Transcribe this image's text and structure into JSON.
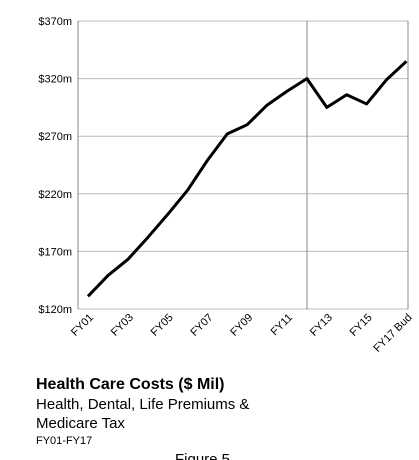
{
  "chart_data": {
    "type": "line",
    "title": "Health Care Costs  ($ Mil)",
    "subtitle_lines": [
      "Health, Dental, Life Premiums &",
      "Medicare Tax"
    ],
    "period": "FY01-FY17",
    "figure_label": "Figure 5",
    "categories": [
      "FY01",
      null,
      "FY03",
      null,
      "FY05",
      null,
      "FY07",
      null,
      "FY09",
      null,
      "FY11",
      null,
      "FY13",
      null,
      "FY15",
      null,
      "FY17 Bud"
    ],
    "series": [
      {
        "color": "#000000",
        "values": [
          131,
          149,
          163,
          182,
          202,
          223,
          249,
          272,
          280,
          297,
          309,
          320,
          295,
          306,
          298,
          319,
          335
        ]
      }
    ],
    "ylim": [
      120,
      370
    ],
    "yticks": [
      {
        "value": 120,
        "label": "$120m"
      },
      {
        "value": 170,
        "label": "$170m"
      },
      {
        "value": 220,
        "label": "$220m"
      },
      {
        "value": 270,
        "label": "$270m"
      },
      {
        "value": 320,
        "label": "$320m"
      },
      {
        "value": 370,
        "label": "$370m"
      }
    ],
    "grid": true
  }
}
